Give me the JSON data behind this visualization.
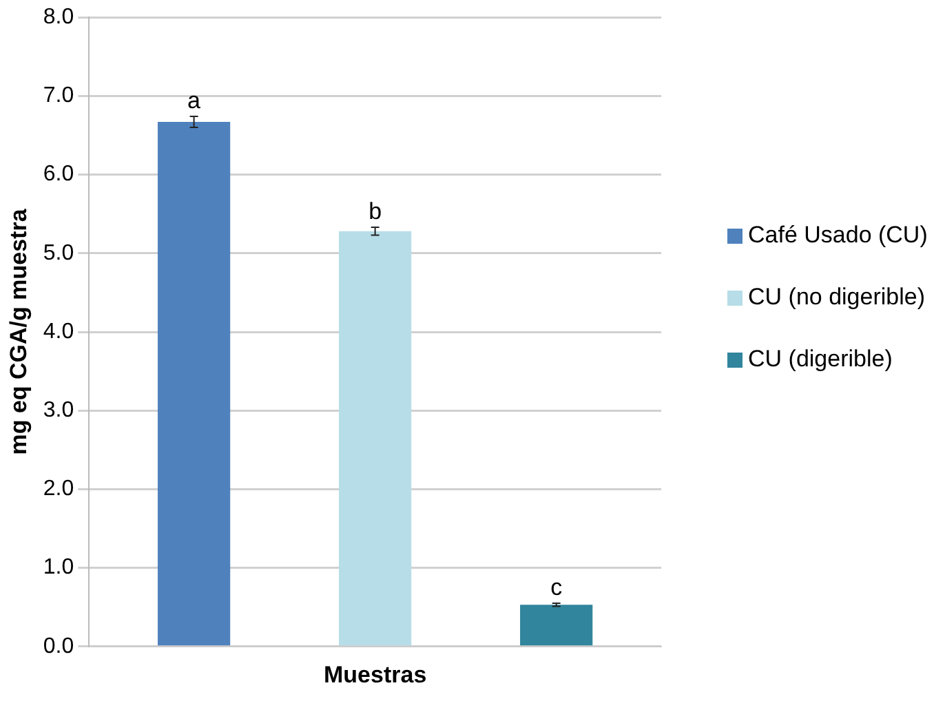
{
  "chart_data": {
    "type": "bar",
    "xlabel": "Muestras",
    "ylabel": "mg eq CGA/g muestra",
    "categories": [
      null
    ],
    "series": [
      {
        "name": "Café Usado (CU)",
        "color": "#4f81bd",
        "values": [
          6.67
        ],
        "errors": [
          0.07
        ]
      },
      {
        "name": "CU (no digerible)",
        "color": "#b7dde8",
        "values": [
          5.28
        ],
        "errors": [
          0.05
        ]
      },
      {
        "name": "CU (digerible)",
        "color": "#31859c",
        "values": [
          0.53
        ],
        "errors": [
          0.02
        ]
      }
    ],
    "annotations": [
      {
        "text": "a",
        "y": 6.74
      },
      {
        "text": "b",
        "y": 5.33
      },
      {
        "text": "c",
        "y": 0.55
      }
    ],
    "ylim": [
      0,
      8
    ],
    "yticks": [
      {
        "value": 0,
        "label": "0.0"
      },
      {
        "value": 1,
        "label": "1.0"
      },
      {
        "value": 2,
        "label": "2.0"
      },
      {
        "value": 3,
        "label": "3.0"
      },
      {
        "value": 4,
        "label": "4.0"
      },
      {
        "value": 5,
        "label": "5.0"
      },
      {
        "value": 6,
        "label": "6.0"
      },
      {
        "value": 7,
        "label": "7.0"
      },
      {
        "value": 8,
        "label": "8.0"
      }
    ],
    "grid": "y",
    "legend": "right"
  }
}
